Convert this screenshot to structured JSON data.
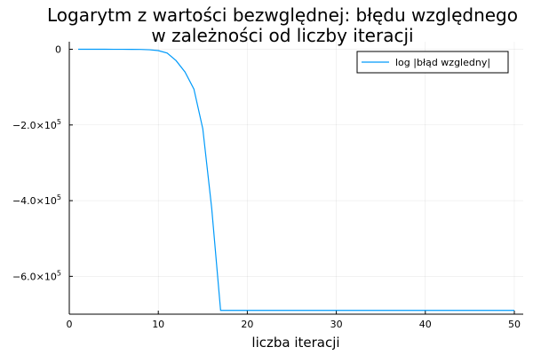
{
  "chart_data": {
    "type": "line",
    "title": "Logarytm z wartości bezwględnej: błędu względnego",
    "subtitle": "w zależności od liczby iteracji",
    "xlabel": "liczba iteracji",
    "ylabel": "",
    "xlim": [
      0,
      51
    ],
    "ylim": [
      -700000,
      20000
    ],
    "xticks": [
      0,
      10,
      20,
      30,
      40,
      50
    ],
    "yticks": [
      {
        "value": 0,
        "mantissa": "0",
        "exp": ""
      },
      {
        "value": -200000,
        "mantissa": "−2.0×10",
        "exp": "5"
      },
      {
        "value": -400000,
        "mantissa": "−4.0×10",
        "exp": "5"
      },
      {
        "value": -600000,
        "mantissa": "−6.0×10",
        "exp": "5"
      }
    ],
    "grid": true,
    "legend_position": "top-right",
    "series_color": "#009AFA",
    "series": [
      {
        "name": "log |błąd wzgledny|",
        "x": [
          1,
          2,
          3,
          4,
          5,
          6,
          7,
          8,
          9,
          10,
          11,
          12,
          13,
          14,
          15,
          16,
          17,
          18,
          19,
          20,
          21,
          22,
          23,
          24,
          25,
          26,
          27,
          28,
          29,
          30,
          31,
          32,
          33,
          34,
          35,
          36,
          37,
          38,
          39,
          40,
          41,
          42,
          43,
          44,
          45,
          46,
          47,
          48,
          49,
          50
        ],
        "values": [
          0,
          0,
          0,
          -10,
          -20,
          -50,
          -150,
          -400,
          -1200,
          -3500,
          -10000,
          -30000,
          -60000,
          -105000,
          -210000,
          -420000,
          -690000,
          -690000,
          -690000,
          -690000,
          -690000,
          -690000,
          -690000,
          -690000,
          -690000,
          -690000,
          -690000,
          -690000,
          -690000,
          -690000,
          -690000,
          -690000,
          -690000,
          -690000,
          -690000,
          -690000,
          -690000,
          -690000,
          -690000,
          -690000,
          -690000,
          -690000,
          -690000,
          -690000,
          -690000,
          -690000,
          -690000,
          -690000,
          -690000,
          -690000
        ]
      }
    ]
  }
}
